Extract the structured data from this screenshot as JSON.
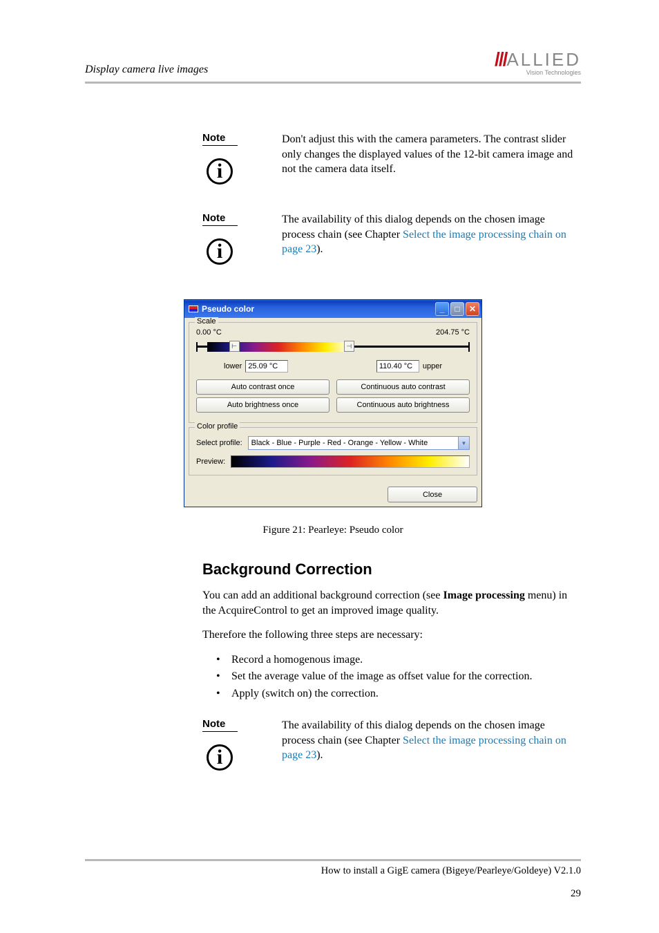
{
  "header": {
    "section_title": "Display camera live images",
    "logo_text": "ALLIED",
    "logo_sub": "Vision Technologies"
  },
  "notes": {
    "label": "Note",
    "note1": "Don't adjust this with the camera parameters. The contrast slider only changes the displayed values of the 12-bit camera image and not the camera data itself.",
    "note2_a": "The availability of this dialog depends on the chosen image process chain (see Chapter ",
    "note2_link": "Select the image processing chain on page 23",
    "note2_b": ").",
    "note3_a": "The availability of this dialog depends on the chosen image process chain (see Chapter ",
    "note3_link": "Select the image processing chain on page 23",
    "note3_b": ")."
  },
  "dialog": {
    "title": "Pseudo color",
    "scale": {
      "group_label": "Scale",
      "min_label": "0.00 °C",
      "max_label": "204.75 °C",
      "lower_label": "lower",
      "lower_value": "25.09 °C",
      "upper_value": "110.40 °C",
      "upper_label": "upper",
      "handle_pos_lower_pct": 12,
      "handle_pos_upper_pct": 54,
      "gradient_left_pct": 4,
      "gradient_right_pct": 56,
      "btn_auto_contrast_once": "Auto contrast once",
      "btn_continuous_contrast": "Continuous auto contrast",
      "btn_auto_brightness_once": "Auto brightness once",
      "btn_continuous_brightness": "Continuous auto brightness"
    },
    "color_profile": {
      "group_label": "Color profile",
      "select_label": "Select profile:",
      "selected_value": "Black - Blue - Purple - Red - Orange - Yellow - White",
      "preview_label": "Preview:"
    },
    "close_btn": "Close"
  },
  "figure_caption": "Figure 21: Pearleye: Pseudo color",
  "section": {
    "heading": "Background Correction",
    "p1_a": "You can add an additional background correction (see ",
    "p1_bold": "Image processing",
    "p1_b": " menu) in the AcquireControl to get an improved image quality.",
    "p2": "Therefore the following three steps are necessary:",
    "bullets": [
      "Record a homogenous image.",
      "Set the average value of the image as offset value for the correction.",
      "Apply (switch on) the correction."
    ]
  },
  "footer": {
    "text": "How to install a GigE camera (Bigeye/Pearleye/Goldeye) V2.1.0",
    "page": "29"
  }
}
